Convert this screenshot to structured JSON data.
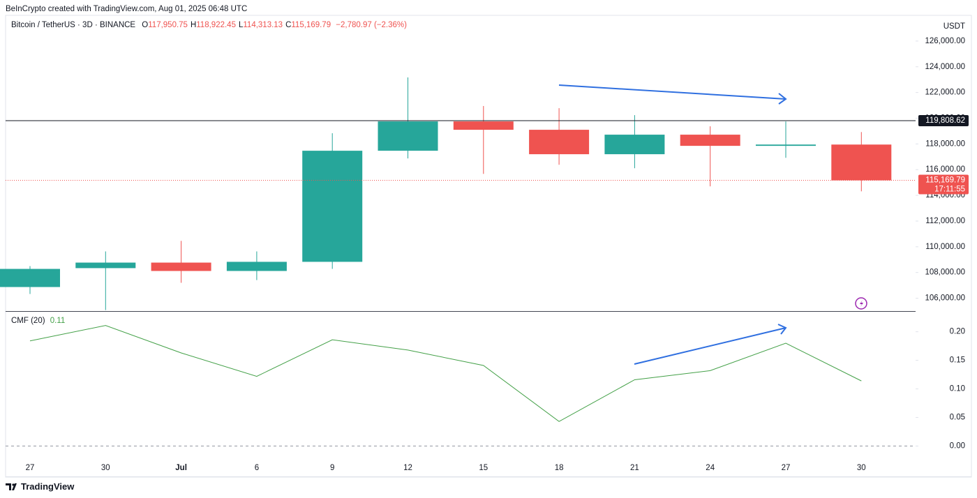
{
  "header": {
    "attribution": "BeInCrypto created with TradingView.com, Aug 01, 2025 06:48 UTC"
  },
  "chart_data": [
    {
      "type": "candlestick",
      "title": "Bitcoin / TetherUS · 3D · BINANCE",
      "ohlc_legend": [
        {
          "label": "O",
          "value": "117,950.75"
        },
        {
          "label": "H",
          "value": "118,922.45"
        },
        {
          "label": "L",
          "value": "114,313.13"
        },
        {
          "label": "C",
          "value": "115,169.79"
        }
      ],
      "change": "−2,780.97 (−2.36%)",
      "y_axis_label": "USDT",
      "categories": [
        "27",
        "30",
        "Jul",
        "6",
        "9",
        "12",
        "15",
        "18",
        "21",
        "24",
        "27",
        "30"
      ],
      "open": [
        106870,
        108340,
        108770,
        108120,
        108830,
        117470,
        119750,
        119100,
        117200,
        118720,
        117850,
        117950.75
      ],
      "high": [
        108500,
        109640,
        110460,
        109640,
        118830,
        123170,
        120950,
        120780,
        120240,
        119370,
        119750,
        118922.45
      ],
      "low": [
        106330,
        105080,
        107200,
        107410,
        108280,
        116870,
        115670,
        116380,
        116110,
        114700,
        116920,
        114313.13
      ],
      "close": [
        108280,
        108770,
        108120,
        108830,
        117470,
        119750,
        119100,
        117200,
        118720,
        117850,
        117950.75,
        115169.79
      ],
      "up_color": "#26a69a",
      "down_color": "#ef5350",
      "ylim": [
        105000,
        128000
      ],
      "yticks": [
        {
          "value": 106000,
          "label": "106,000.00"
        },
        {
          "value": 108000,
          "label": "108,000.00"
        },
        {
          "value": 110000,
          "label": "110,000.00"
        },
        {
          "value": 112000,
          "label": "112,000.00"
        },
        {
          "value": 114000,
          "label": "114,000.00"
        },
        {
          "value": 116000,
          "label": "116,000.00"
        },
        {
          "value": 118000,
          "label": "118,000.00"
        },
        {
          "value": 120000,
          "label": "120,000.00"
        },
        {
          "value": 122000,
          "label": "122,000.00"
        },
        {
          "value": 124000,
          "label": "124,000.00"
        },
        {
          "value": 126000,
          "label": "126,000.00"
        }
      ],
      "price_lines": [
        {
          "value": 119808.62,
          "label": "119,808.62",
          "color": "#131722",
          "style": "solid"
        },
        {
          "value": 115169.79,
          "label": "115,169.79",
          "sublabel": "17:11:55",
          "color": "#ef5350",
          "style": "dotted"
        }
      ]
    },
    {
      "type": "line",
      "title": "CMF (20)",
      "last_value_label": "0.11",
      "color": "#43a047",
      "values": [
        0.184,
        0.211,
        0.163,
        0.122,
        0.186,
        0.168,
        0.141,
        0.043,
        0.116,
        0.132,
        0.18,
        0.114
      ],
      "ylim": [
        -0.025,
        0.235
      ],
      "yticks": [
        {
          "value": 0,
          "label": "0.00"
        },
        {
          "value": 0.05,
          "label": "0.05"
        },
        {
          "value": 0.1,
          "label": "0.10"
        },
        {
          "value": 0.15,
          "label": "0.15"
        },
        {
          "value": 0.2,
          "label": "0.20"
        }
      ],
      "zero_line": true
    }
  ],
  "footer": {
    "brand": "TradingView"
  }
}
